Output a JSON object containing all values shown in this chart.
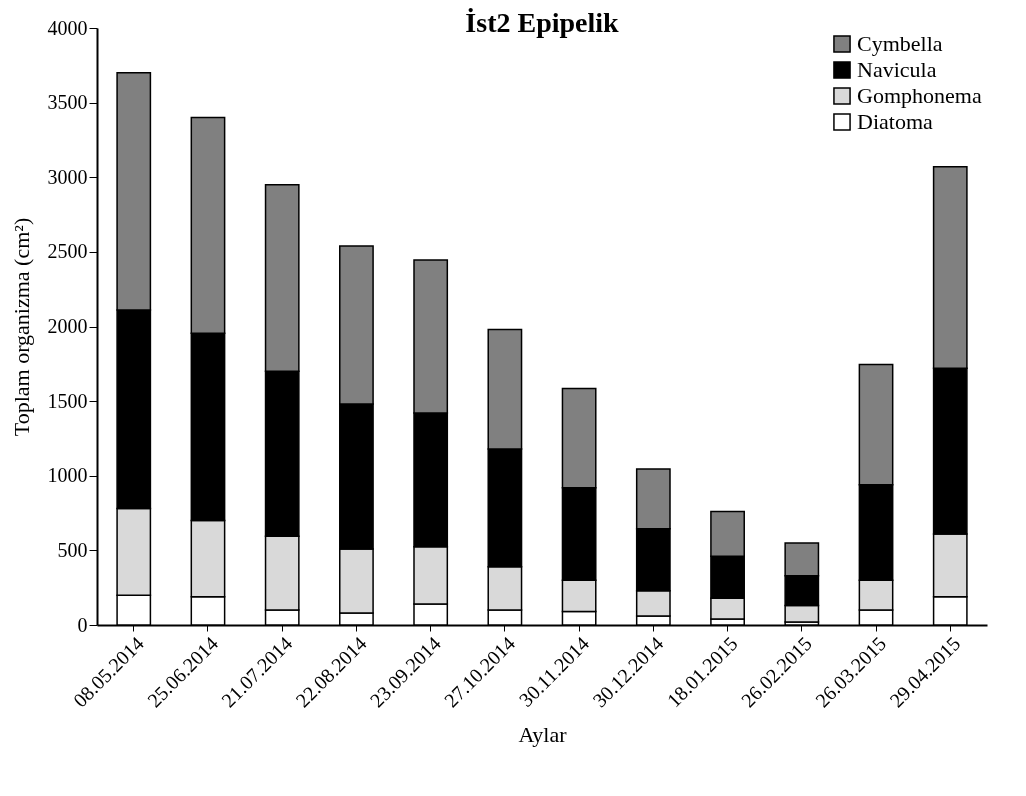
{
  "chart_data": {
    "type": "bar",
    "title": "İst2 Epipelik",
    "xlabel": "Aylar",
    "ylabel": "Toplam organizma (cm²)",
    "categories": [
      "08.05.2014",
      "25.06.2014",
      "21.07.2014",
      "22.08.2014",
      "23.09.2014",
      "27.10.2014",
      "30.11.2014",
      "30.12.2014",
      "18.01.2015",
      "26.02.2015",
      "26.03.2015",
      "29.04.2015"
    ],
    "stacked": true,
    "series": [
      {
        "name": "Diatoma",
        "color": "#ffffff",
        "values": [
          200,
          190,
          100,
          80,
          140,
          100,
          90,
          60,
          40,
          20,
          100,
          190
        ]
      },
      {
        "name": "Gomphonema",
        "color": "#d9d9d9",
        "values": [
          580,
          510,
          495,
          430,
          385,
          290,
          210,
          170,
          140,
          110,
          200,
          420
        ]
      },
      {
        "name": "Navicula",
        "color": "#000000",
        "values": [
          1330,
          1255,
          1105,
          970,
          895,
          790,
          620,
          415,
          280,
          200,
          640,
          1110
        ]
      },
      {
        "name": "Cymbella",
        "color": "#808080",
        "values": [
          1590,
          1445,
          1250,
          1060,
          1025,
          800,
          665,
          400,
          300,
          220,
          805,
          1350
        ]
      }
    ],
    "ylim": [
      0,
      4000
    ],
    "yticks": [
      0,
      500,
      1000,
      1500,
      2000,
      2500,
      3000,
      3500,
      4000
    ],
    "grid": false,
    "legend": "top right"
  }
}
